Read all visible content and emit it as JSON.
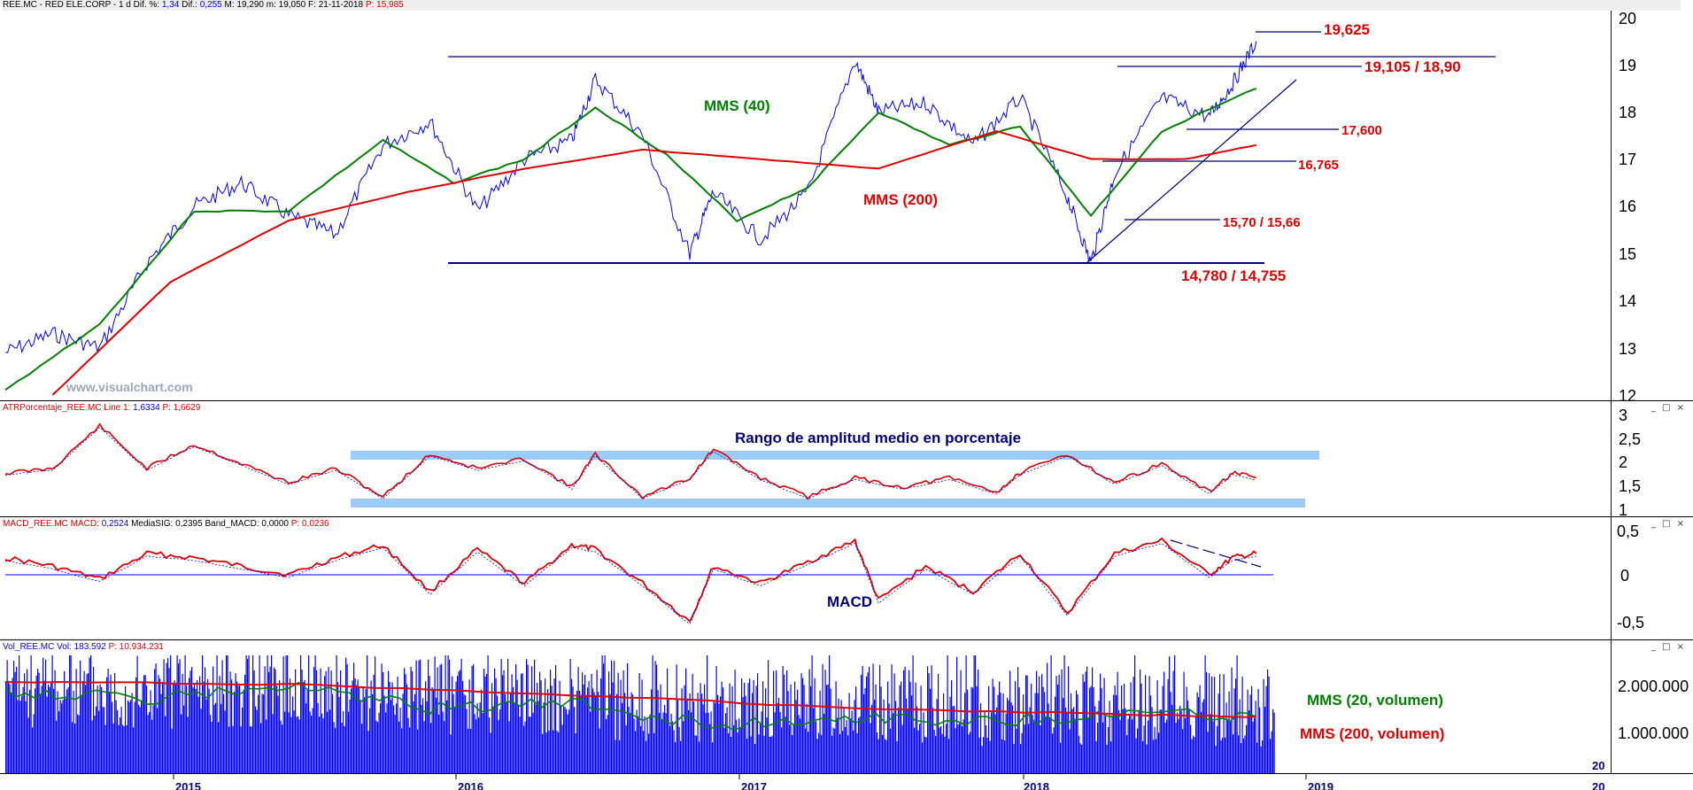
{
  "colors": {
    "price": "#0000ff",
    "mms_short": "#008000",
    "mms_long": "#e00000",
    "annotation_red": "#e00000",
    "annotation_navy": "#00007a",
    "band": "#9ccbf5",
    "axis": "#0000c0"
  },
  "panels": {
    "price": {
      "header": {
        "symbol": "REE.MC - RED ELE.CORP -  1 d",
        "dif_pct_label": "Dif. %:",
        "dif_pct_value": "1,34",
        "dif_label": "Dif.:",
        "dif_value": "0,255",
        "max_label": "M:",
        "max_value": "19,290",
        "min_label": "m:",
        "min_value": "19,050",
        "date_label": "F:",
        "date_value": "21-11-2018",
        "p_label": "P:",
        "p_value": "15,985"
      },
      "yticks": [
        "20",
        "19",
        "18",
        "17",
        "16",
        "15",
        "14",
        "13",
        "12"
      ],
      "watermark": "www.visualchart.com",
      "annotations": {
        "l19625": "19,625",
        "l19105": "19,105 / 18,90",
        "l17600": "17,600",
        "l16765": "16,765",
        "l1570": "15,70 / 15,66",
        "l14780": "14,780 / 14,755",
        "mms40": "MMS (40)",
        "mms200": "MMS (200)"
      }
    },
    "atr": {
      "header": {
        "label": "ATRPorcentaje_REE.MC  Line 1:",
        "line1": "1,6334",
        "p_label": "P:",
        "p_value": "1,6629"
      },
      "title": "Rango de amplitud medio en porcentaje",
      "yticks": [
        "3",
        "2,5",
        "2",
        "1,5",
        "1"
      ]
    },
    "macd": {
      "header": {
        "label": "MACD_REE.MC  MACD:",
        "macd": "0,2524",
        "sig_label": "MediaSIG:",
        "sig": "0,2395",
        "band_label": "Band_MACD:",
        "band": "0,0000",
        "p_label": "P:",
        "p_value": "0,0236"
      },
      "title": "MACD",
      "yticks": [
        "0,5",
        "0",
        "-0,5"
      ]
    },
    "volume": {
      "header": {
        "label": "Vol_REE.MC  Vol:",
        "vol": "183.592",
        "p_label": "P:",
        "p_value": "10.934.231"
      },
      "yticks": [
        "2.000.000",
        "1.000.000"
      ],
      "mms20": "MMS (20, volumen)",
      "mms200": "MMS (200, volumen)"
    }
  },
  "xaxis": {
    "labels": [
      "2015",
      "2016",
      "2017",
      "2018",
      "2019"
    ],
    "edge_labels": [
      "20",
      "20"
    ]
  },
  "window_controls": "_ □ ×",
  "chart_data": [
    {
      "type": "line",
      "title": "REE.MC - RED ELE.CORP",
      "ylim": [
        12,
        20
      ],
      "x_range": [
        "2014-06",
        "2019-10"
      ],
      "series": [
        {
          "name": "REE.MC",
          "x": [
            "2014-06",
            "2014-08",
            "2014-10",
            "2014-12",
            "2015-02",
            "2015-04",
            "2015-06",
            "2015-08",
            "2015-10",
            "2015-12",
            "2016-02",
            "2016-04",
            "2016-06",
            "2016-07",
            "2016-09",
            "2016-11",
            "2016-12",
            "2017-02",
            "2017-04",
            "2017-06",
            "2017-07",
            "2017-09",
            "2017-11",
            "2018-01",
            "2018-03",
            "2018-04",
            "2018-05",
            "2018-07",
            "2018-09",
            "2018-10",
            "2018-11"
          ],
          "values": [
            12.9,
            13.3,
            13.0,
            14.8,
            16.0,
            16.5,
            15.8,
            15.4,
            17.3,
            17.8,
            15.9,
            17.0,
            17.4,
            18.7,
            17.5,
            15.0,
            16.3,
            15.3,
            16.3,
            19.1,
            18.0,
            18.2,
            17.3,
            18.3,
            16.2,
            14.8,
            16.7,
            18.3,
            17.9,
            18.6,
            19.5
          ]
        },
        {
          "name": "MMS (40)",
          "x": [
            "2014-06",
            "2014-10",
            "2015-02",
            "2015-06",
            "2015-10",
            "2016-01",
            "2016-04",
            "2016-07",
            "2016-10",
            "2017-01",
            "2017-04",
            "2017-07",
            "2017-10",
            "2018-01",
            "2018-04",
            "2018-07",
            "2018-11"
          ],
          "values": [
            12.1,
            13.5,
            15.9,
            15.9,
            17.4,
            16.5,
            17.0,
            18.1,
            17.1,
            15.7,
            16.4,
            18.0,
            17.3,
            17.7,
            15.8,
            17.6,
            18.5
          ]
        },
        {
          "name": "MMS (200)",
          "x": [
            "2014-08",
            "2015-01",
            "2015-06",
            "2015-11",
            "2016-04",
            "2016-09",
            "2017-02",
            "2017-07",
            "2017-12",
            "2018-04",
            "2018-08",
            "2018-11"
          ],
          "values": [
            12.0,
            14.4,
            15.7,
            16.3,
            16.8,
            17.2,
            17.0,
            16.8,
            17.6,
            17.0,
            17.0,
            17.3
          ]
        }
      ],
      "levels": [
        19.625,
        19.105,
        18.9,
        17.6,
        16.765,
        15.7,
        15.66,
        14.78,
        14.755
      ]
    },
    {
      "type": "line",
      "title": "ATRPorcentaje_REE.MC",
      "ylim": [
        1,
        3
      ],
      "series": [
        {
          "name": "ATRPorcentaje_REE.MC",
          "x": [
            "2014-06",
            "2014-08",
            "2014-10",
            "2014-12",
            "2015-02",
            "2015-04",
            "2015-06",
            "2015-08",
            "2015-10",
            "2015-12",
            "2016-02",
            "2016-04",
            "2016-06",
            "2016-07",
            "2016-09",
            "2016-11",
            "2016-12",
            "2017-02",
            "2017-04",
            "2017-06",
            "2017-08",
            "2017-10",
            "2017-12",
            "2018-01",
            "2018-03",
            "2018-05",
            "2018-07",
            "2018-09",
            "2018-10",
            "2018-11"
          ],
          "values": [
            1.8,
            1.9,
            2.8,
            1.9,
            2.4,
            2.0,
            1.6,
            1.9,
            1.3,
            2.2,
            1.9,
            2.1,
            1.5,
            2.2,
            1.3,
            1.7,
            2.3,
            1.7,
            1.3,
            1.7,
            1.5,
            1.7,
            1.4,
            1.8,
            2.2,
            1.6,
            2.0,
            1.4,
            1.8,
            1.7
          ]
        }
      ]
    },
    {
      "type": "line",
      "title": "MACD_REE.MC",
      "ylim": [
        -0.6,
        0.6
      ],
      "series": [
        {
          "name": "MACD_REE.MC",
          "x": [
            "2014-06",
            "2014-08",
            "2014-10",
            "2014-12",
            "2015-02",
            "2015-04",
            "2015-06",
            "2015-08",
            "2015-10",
            "2015-12",
            "2016-02",
            "2016-04",
            "2016-06",
            "2016-07",
            "2016-09",
            "2016-11",
            "2016-12",
            "2017-02",
            "2017-04",
            "2017-06",
            "2017-07",
            "2017-09",
            "2017-11",
            "2018-01",
            "2018-03",
            "2018-05",
            "2018-07",
            "2018-09",
            "2018-10",
            "2018-11"
          ],
          "values": [
            0.2,
            0.1,
            -0.05,
            0.25,
            0.2,
            0.1,
            0.0,
            0.2,
            0.35,
            -0.2,
            0.3,
            -0.1,
            0.35,
            0.3,
            -0.1,
            -0.55,
            0.1,
            -0.1,
            0.15,
            0.4,
            -0.3,
            0.1,
            -0.2,
            0.25,
            -0.45,
            0.25,
            0.4,
            0.0,
            0.2,
            0.25
          ]
        }
      ]
    },
    {
      "type": "bar",
      "title": "Vol_REE.MC",
      "ylim": [
        0,
        2600000
      ],
      "series": [
        {
          "name": "Vol_REE.MC",
          "x": [
            "2014-06",
            "2014-12",
            "2015-06",
            "2015-12",
            "2016-06",
            "2016-12",
            "2017-06",
            "2017-12",
            "2018-06",
            "2018-11"
          ],
          "values": [
            1700000,
            1600000,
            1750000,
            1500000,
            1450000,
            1300000,
            1350000,
            1250000,
            1300000,
            1200000
          ]
        },
        {
          "name": "MMS (20, volumen)",
          "x": [
            "2014-06",
            "2014-12",
            "2015-06",
            "2015-12",
            "2016-06",
            "2016-12",
            "2017-06",
            "2017-12",
            "2018-06",
            "2018-11"
          ],
          "values": [
            1900000,
            1700000,
            2000000,
            1500000,
            1600000,
            1100000,
            1300000,
            1200000,
            1400000,
            1300000
          ]
        },
        {
          "name": "MMS (200, volumen)",
          "x": [
            "2014-06",
            "2015-06",
            "2016-06",
            "2017-06",
            "2018-06",
            "2018-11"
          ],
          "values": [
            2100000,
            2050000,
            1800000,
            1500000,
            1350000,
            1300000
          ]
        }
      ]
    }
  ]
}
